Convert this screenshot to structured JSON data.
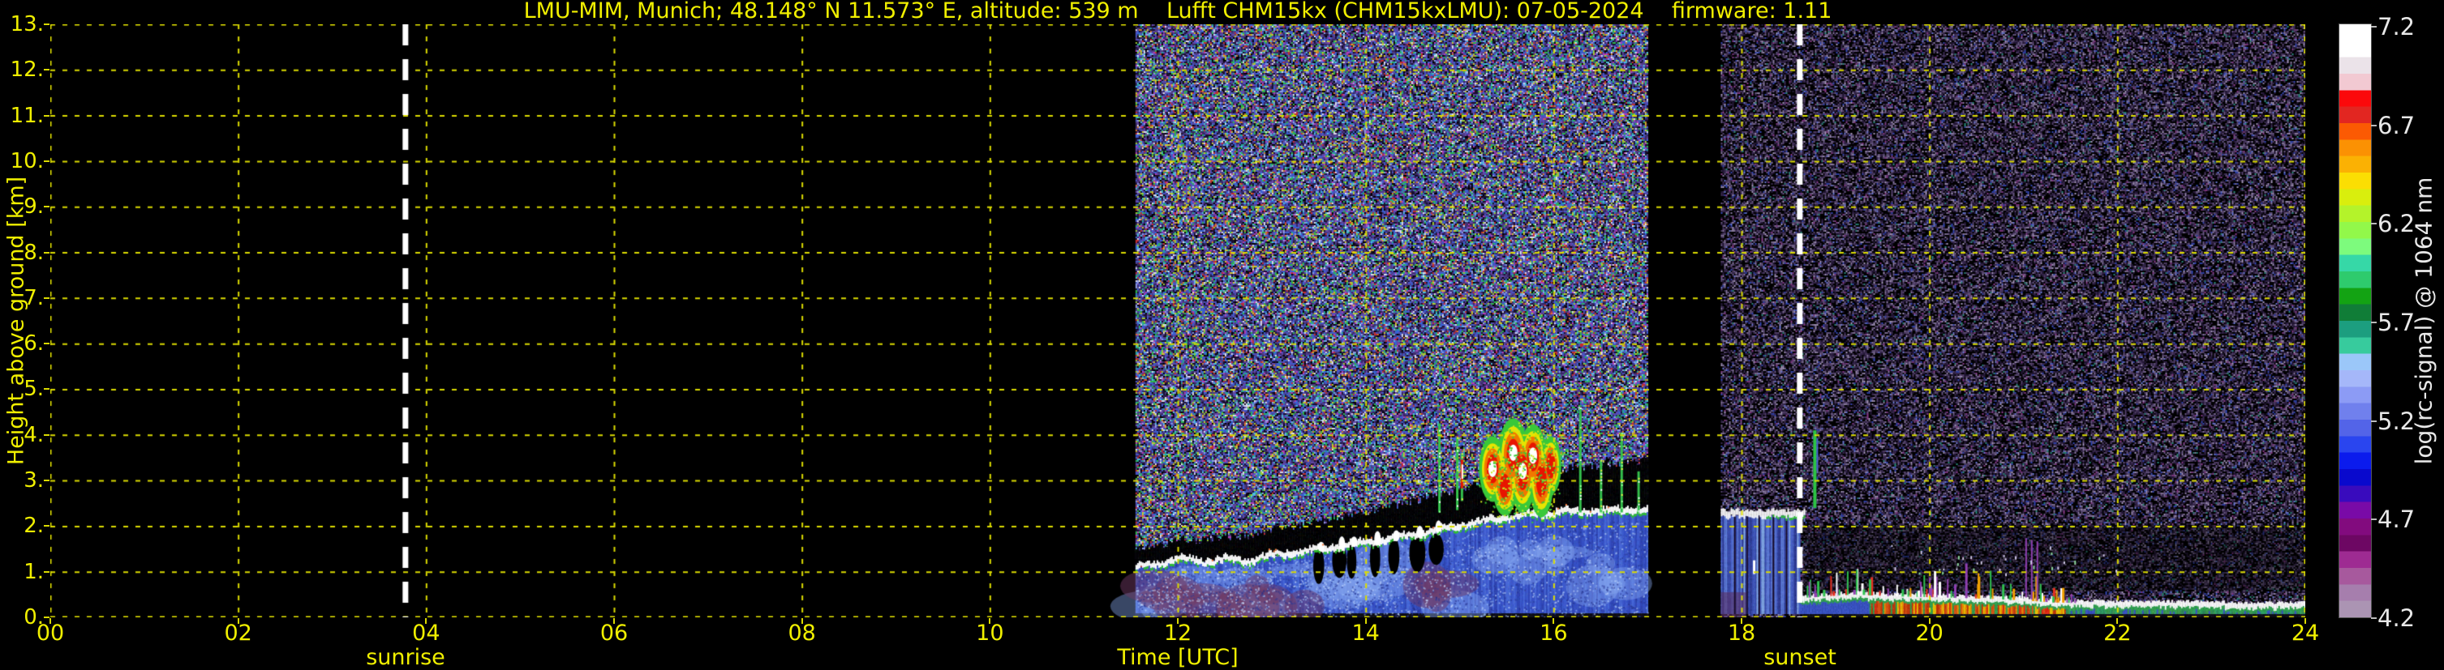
{
  "title": "LMU-MIM, Munich; 48.148° N 11.573° E, altitude: 539 m    Lufft CHM15kx (CHM15kxLMU): 07-05-2024    firmware: 1.11",
  "axes": {
    "x": {
      "label": "Time [UTC]",
      "ticks": [
        "00",
        "02",
        "04",
        "06",
        "08",
        "10",
        "12",
        "14",
        "16",
        "18",
        "20",
        "22",
        "24"
      ]
    },
    "y": {
      "label": "Height above ground [km]",
      "ticks": [
        "13.",
        "12.",
        "11.",
        "10.",
        "9.",
        "8.",
        "7.",
        "6.",
        "5.",
        "4.",
        "3.",
        "2.",
        "1.",
        "0."
      ]
    }
  },
  "annotations": {
    "sunrise_label": "sunrise",
    "sunset_label": "sunset"
  },
  "colorbar": {
    "label": "log(rc-signal) @ 1064 nm",
    "tick_labels": [
      "7.2",
      "6.7",
      "6.2",
      "5.7",
      "5.2",
      "4.7",
      "4.2"
    ],
    "colors_top_to_bottom": [
      "#ffffff",
      "#ffffff",
      "#ebe3e9",
      "#f2c9d2",
      "#fb090b",
      "#e22621",
      "#fb5a03",
      "#fb9103",
      "#fbb103",
      "#fbde03",
      "#d9ee0d",
      "#b4f32a",
      "#92f84a",
      "#7dfb7d",
      "#36d8a7",
      "#2ecb6d",
      "#13a313",
      "#107d37",
      "#1c9e7f",
      "#37cb9d",
      "#9bc7f9",
      "#a5b7f9",
      "#8c9bf5",
      "#7080ed",
      "#5364e8",
      "#2a45ef",
      "#0b1bed",
      "#0909cd",
      "#390bbd",
      "#790aa7",
      "#820b7e",
      "#6d0763",
      "#9e2b92",
      "#a7599d",
      "#a67ead",
      "#ab94b3"
    ]
  },
  "colors": {
    "background": "#000000",
    "axis_text": "#f0ef00",
    "grid": "#dcdc00",
    "title_text": "#f0ef00",
    "colorbar_text": "#e8e8e8",
    "sun_line": "#ffffff"
  },
  "chart_data": {
    "type": "heatmap",
    "title": "LMU-MIM, Munich; 48.148° N 11.573° E, altitude: 539 m — Lufft CHM15kx (CHM15kxLMU): 07-05-2024 — firmware: 1.11",
    "xlabel": "Time [UTC]",
    "ylabel": "Height above ground [km]",
    "xlim_hours": [
      0,
      24
    ],
    "x_tick_step_hours": 2,
    "ylim_km": [
      0,
      13
    ],
    "y_tick_step_km": 1,
    "grid": "dashed yellow, on top of data",
    "colorbar_label": "log(rc-signal) @ 1064 nm",
    "colorbar_range": [
      4.2,
      7.2
    ],
    "colorbar_ticks": [
      7.2,
      6.7,
      6.2,
      5.7,
      5.2,
      4.7,
      4.2
    ],
    "sunrise_utc": 3.78,
    "sunset_utc": 18.62,
    "measurement_intervals_utc": [
      [
        11.55,
        17.0
      ],
      [
        17.78,
        24.0
      ]
    ],
    "data_gaps_utc": [
      [
        0,
        11.55
      ],
      [
        17.0,
        17.78
      ]
    ],
    "boundary_layer_top_km": [
      [
        11.55,
        1.12
      ],
      [
        11.8,
        1.17
      ],
      [
        12.0,
        1.3
      ],
      [
        12.25,
        1.22
      ],
      [
        12.5,
        1.27
      ],
      [
        12.75,
        1.24
      ],
      [
        13.0,
        1.36
      ],
      [
        13.3,
        1.44
      ],
      [
        13.6,
        1.52
      ],
      [
        13.9,
        1.62
      ],
      [
        14.2,
        1.7
      ],
      [
        14.5,
        1.8
      ],
      [
        14.8,
        1.93
      ],
      [
        15.1,
        2.06
      ],
      [
        15.4,
        2.16
      ],
      [
        15.7,
        2.25
      ],
      [
        16.0,
        2.3
      ],
      [
        16.4,
        2.33
      ],
      [
        16.7,
        2.35
      ],
      [
        17.0,
        2.38
      ]
    ],
    "surface_layer_top_km": [
      [
        18.62,
        0.42
      ],
      [
        18.9,
        0.46
      ],
      [
        19.2,
        0.5
      ],
      [
        19.5,
        0.47
      ],
      [
        19.8,
        0.45
      ],
      [
        20.1,
        0.44
      ],
      [
        20.4,
        0.42
      ],
      [
        20.7,
        0.4
      ],
      [
        21.0,
        0.37
      ],
      [
        21.3,
        0.33
      ],
      [
        21.6,
        0.31
      ],
      [
        22.0,
        0.3
      ],
      [
        22.5,
        0.3
      ],
      [
        23.0,
        0.29
      ],
      [
        23.5,
        0.27
      ],
      [
        24.0,
        0.28
      ]
    ],
    "cloud_cluster": {
      "time_utc": [
        15.15,
        16.15
      ],
      "height_km": [
        2.4,
        3.95
      ],
      "peak_signal": ">=7.2 (white cores)"
    },
    "cloud_streaks": [
      {
        "t": 14.78,
        "h": [
          2.3,
          4.25
        ]
      },
      {
        "t": 14.97,
        "h": [
          2.35,
          3.95
        ]
      },
      {
        "t": 15.02,
        "h": [
          2.55,
          3.6
        ],
        "hot": true
      },
      {
        "t": 16.28,
        "h": [
          2.3,
          4.6
        ]
      },
      {
        "t": 16.5,
        "h": [
          2.3,
          3.45
        ]
      },
      {
        "t": 16.72,
        "h": [
          2.3,
          4.05
        ]
      },
      {
        "t": 16.9,
        "h": [
          2.3,
          3.2
        ]
      }
    ],
    "cumulus_notches_utc": [
      13.5,
      13.72,
      13.85,
      14.1,
      14.3,
      14.55,
      14.75
    ],
    "evening_columns": {
      "time_utc": [
        17.78,
        18.62
      ],
      "height_km": [
        0,
        2.3
      ],
      "cap_km": 2.3
    },
    "green_streak": {
      "time_utc": 18.78,
      "height_km": [
        2.4,
        4.1
      ]
    },
    "noise_character": {
      "daytime": "dense multicolour solar-background speckle over full column",
      "night": "sparse violet speckle on black, darkest below 2 km"
    }
  }
}
